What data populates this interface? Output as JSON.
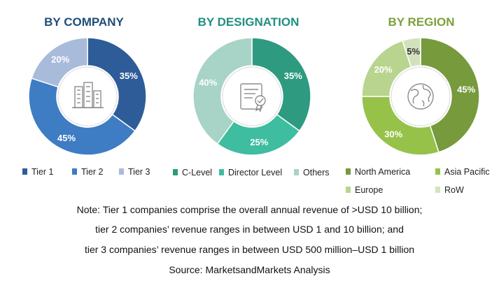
{
  "chart_data": [
    {
      "type": "pie",
      "title": "BY COMPANY",
      "title_color": "#1F4E79",
      "center_icon": "office-buildings-icon",
      "slices": [
        {
          "label": "Tier 1",
          "value": 35,
          "value_label": "35%",
          "color": "#2E5C99"
        },
        {
          "label": "Tier 2",
          "value": 45,
          "value_label": "45%",
          "color": "#3E7CC4"
        },
        {
          "label": "Tier 3",
          "value": 20,
          "value_label": "20%",
          "color": "#A9BBDA"
        }
      ]
    },
    {
      "type": "pie",
      "title": "BY DESIGNATION",
      "title_color": "#1F8F80",
      "center_icon": "certificate-document-icon",
      "slices": [
        {
          "label": "C-Level",
          "value": 35,
          "value_label": "35%",
          "color": "#2E9A80"
        },
        {
          "label": "Director Level",
          "value": 25,
          "value_label": "25%",
          "color": "#3EBDA0"
        },
        {
          "label": "Others",
          "value": 40,
          "value_label": "40%",
          "color": "#A8D3C7"
        }
      ]
    },
    {
      "type": "pie",
      "title": "BY REGION",
      "title_color": "#7BA03A",
      "center_icon": "globe-icon",
      "slices": [
        {
          "label": "North America",
          "value": 45,
          "value_label": "45%",
          "color": "#769A3C"
        },
        {
          "label": "Asia Pacific",
          "value": 30,
          "value_label": "30%",
          "color": "#96C24A"
        },
        {
          "label": "Europe",
          "value": 20,
          "value_label": "20%",
          "color": "#B9D48E"
        },
        {
          "label": "RoW",
          "value": 5,
          "value_label": "5%",
          "color": "#D3E2BD"
        }
      ]
    }
  ],
  "notes": {
    "line1": "Note: Tier 1 companies comprise the overall annual revenue of >USD 10 billion;",
    "line2": "tier 2 companies’ revenue ranges in between USD 1 and 10 billion; and",
    "line3": "tier 3 companies’ revenue ranges in between USD 500 million–USD 1 billion",
    "source": "Source: MarketsandMarkets Analysis"
  }
}
